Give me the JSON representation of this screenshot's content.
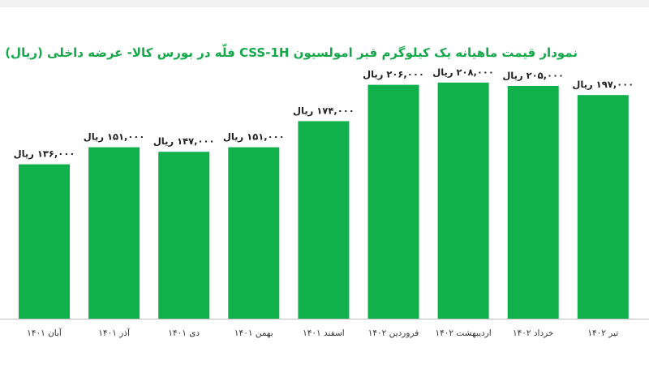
{
  "chart_data": {
    "type": "bar",
    "title": "نمودار قیمت ماهیانه یک کیلوگرم قیر امولسیون CSS-1H فلّه در بورس کالا- عرضه داخلی (ریال)",
    "categories": [
      "آبان ۱۴۰۱",
      "آذر ۱۴۰۱",
      "دی ۱۴۰۱",
      "بهمن ۱۴۰۱",
      "اسفند ۱۴۰۱",
      "فروردین ۱۴۰۲",
      "اردیبهشت ۱۴۰۲",
      "خرداد ۱۴۰۲",
      "تیر ۱۴۰۲"
    ],
    "values": [
      136000,
      151000,
      147000,
      151000,
      174000,
      206000,
      208000,
      205000,
      197000
    ],
    "data_labels": [
      "۱۳۶,۰۰۰ ریال",
      "۱۵۱,۰۰۰ ریال",
      "۱۴۷,۰۰۰ ریال",
      "۱۵۱,۰۰۰ ریال",
      "۱۷۴,۰۰۰ ریال",
      "۲۰۶,۰۰۰ ریال",
      "۲۰۸,۰۰۰ ریال",
      "۲۰۵,۰۰۰ ریال",
      "۱۹۷,۰۰۰ ریال"
    ],
    "ylim": [
      0,
      240000
    ],
    "grid": false,
    "legend": "none",
    "colors": {
      "bar": "#10b14b",
      "title": "#15a84a",
      "axis": "#bfbfbf"
    }
  }
}
